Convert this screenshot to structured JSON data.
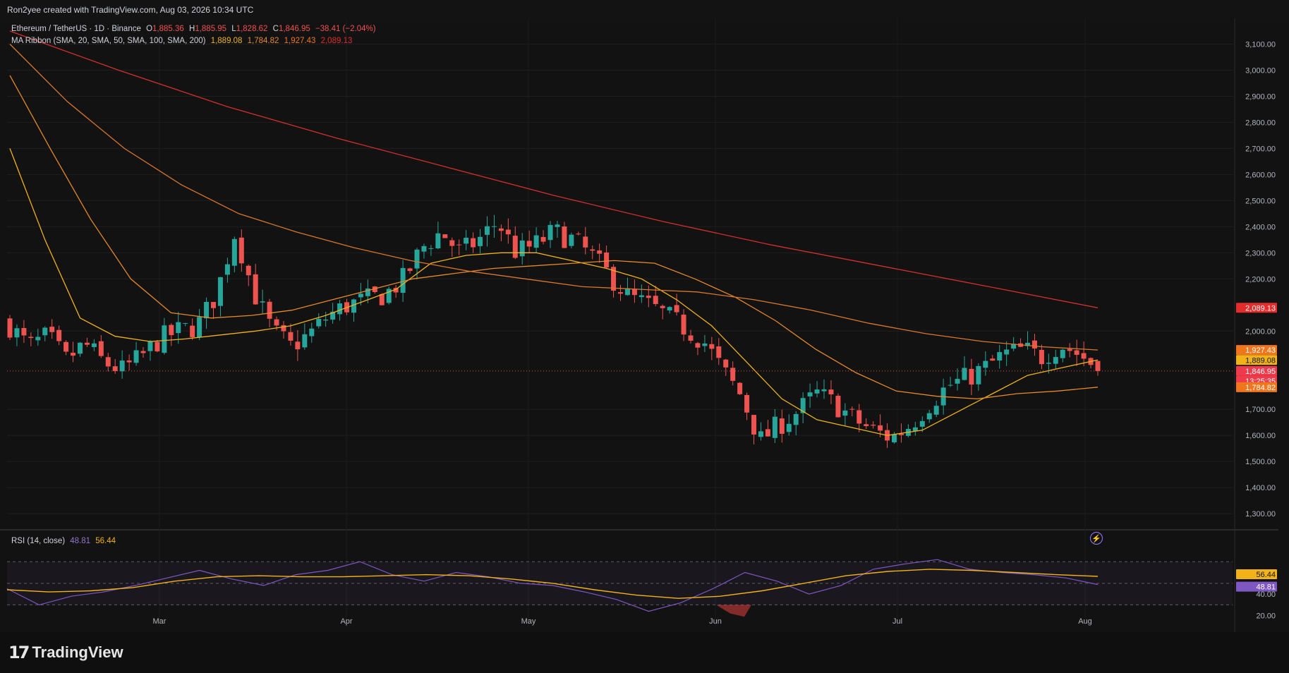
{
  "header": {
    "credit": "Ron2yee created with TradingView.com, Aug 03, 2026 10:34 UTC"
  },
  "legend": {
    "symbol": "Ethereum / TetherUS · 1D · Binance",
    "o_label": "O",
    "o": "1,885.36",
    "h_label": "H",
    "h": "1,885.95",
    "l_label": "L",
    "l": "1,828.62",
    "c_label": "C",
    "c": "1,846.95",
    "change": "−38.41 (−2.04%)",
    "ma_label": "MA Ribbon (SMA, 20, SMA, 50, SMA, 100, SMA, 200)",
    "ma20": "1,889.08",
    "ma50": "1,784.82",
    "ma100": "1,927.43",
    "ma200": "2,089.13",
    "rsi_label": "RSI (14, close)",
    "rsi": "48.81",
    "rsi_ma": "56.44"
  },
  "price_axis": [
    "3,100.00",
    "3,000.00",
    "2,900.00",
    "2,800.00",
    "2,700.00",
    "2,600.00",
    "2,500.00",
    "2,400.00",
    "2,300.00",
    "2,200.00",
    "2,000.00",
    "1,700.00",
    "1,600.00",
    "1,500.00",
    "1,400.00",
    "1,300.00"
  ],
  "price_badges": [
    {
      "label": "2,089.13",
      "color": "#e32c2c"
    },
    {
      "label": "1,927.43",
      "color": "#f0761d"
    },
    {
      "label": "1,889.08",
      "color": "#f2b318"
    },
    {
      "label": "1,846.95",
      "color": "#ef3a4c"
    },
    {
      "label": "13:25:35",
      "color": "#ef3a4c"
    },
    {
      "label": "1,784.82",
      "color": "#f0761d"
    }
  ],
  "rsi_axis": [
    "40.00",
    "20.00"
  ],
  "rsi_badges": [
    {
      "label": "56.44",
      "color": "#f2b318"
    },
    {
      "label": "48.81",
      "color": "#7e57c2"
    }
  ],
  "time_axis": [
    "Mar",
    "Apr",
    "May",
    "Jun",
    "Jul",
    "Aug"
  ],
  "brand": "TradingView",
  "colors": {
    "up": "#26a69a",
    "down": "#ef5350",
    "sma20": "#f2b318",
    "sma50": "#e5892a",
    "sma100": "#d9772c",
    "sma200": "#d32f2f",
    "rsi": "#7e57c2",
    "rsi_ma": "#f2b318"
  },
  "chart_data": [
    {
      "type": "candlestick",
      "title": "Ethereum / TetherUS · 1D · Binance",
      "ylim": [
        1230,
        3150
      ],
      "x_labels": [
        "Mar",
        "Apr",
        "May",
        "Jun",
        "Jul",
        "Aug"
      ],
      "last": {
        "open": 1885.36,
        "high": 1885.95,
        "low": 1828.62,
        "close": 1846.95
      },
      "close_path": [
        2020,
        1940,
        1980,
        1890,
        1950,
        1880,
        1850,
        1900,
        1970,
        2000,
        2020,
        2140,
        2380,
        2150,
        2000,
        1940,
        1990,
        2060,
        2100,
        2120,
        2140,
        2200,
        2320,
        2380,
        2300,
        2350,
        2420,
        2300,
        2330,
        2380,
        2350,
        2290,
        2210,
        2130,
        2100,
        2060,
        2010,
        1960,
        1850,
        1750,
        1580,
        1640,
        1690,
        1760,
        1720,
        1660,
        1620,
        1590,
        1640,
        1720,
        1790,
        1820,
        1860,
        1910,
        1930,
        1900,
        1950,
        1910,
        1860
      ],
      "series": [
        {
          "name": "SMA 20",
          "values": [
            2700,
            2350,
            2050,
            1980,
            1960,
            1970,
            1985,
            2000,
            2020,
            2060,
            2110,
            2160,
            2260,
            2290,
            2300,
            2300,
            2270,
            2240,
            2200,
            2120,
            2020,
            1880,
            1740,
            1660,
            1630,
            1600,
            1620,
            1690,
            1760,
            1830,
            1860,
            1889.08
          ]
        },
        {
          "name": "SMA 50",
          "values": [
            2980,
            2700,
            2430,
            2200,
            2070,
            2050,
            2060,
            2080,
            2120,
            2160,
            2200,
            2220,
            2240,
            2250,
            2260,
            2270,
            2260,
            2200,
            2130,
            2040,
            1930,
            1840,
            1770,
            1750,
            1740,
            1760,
            1770,
            1784.82
          ]
        },
        {
          "name": "SMA 100",
          "values": [
            3100,
            2880,
            2700,
            2560,
            2450,
            2380,
            2320,
            2270,
            2230,
            2200,
            2170,
            2160,
            2150,
            2120,
            2080,
            2030,
            1990,
            1960,
            1940,
            1927.43
          ]
        },
        {
          "name": "SMA 200",
          "values": [
            3150,
            3000,
            2860,
            2740,
            2630,
            2520,
            2420,
            2330,
            2250,
            2170,
            2089.13
          ]
        }
      ]
    },
    {
      "type": "line",
      "title": "RSI (14, close)",
      "ylim": [
        10,
        95
      ],
      "series": [
        {
          "name": "RSI",
          "values": [
            45,
            30,
            38,
            42,
            48,
            55,
            62,
            54,
            48,
            58,
            62,
            70,
            58,
            52,
            60,
            56,
            50,
            48,
            42,
            35,
            24,
            32,
            45,
            60,
            52,
            40,
            48,
            63,
            68,
            72,
            63,
            60,
            58,
            55,
            48.81
          ]
        },
        {
          "name": "RSI MA",
          "values": [
            44,
            42,
            43,
            46,
            52,
            56,
            57,
            56,
            56,
            57,
            58,
            57,
            54,
            50,
            44,
            39,
            36,
            38,
            43,
            50,
            57,
            61,
            63,
            62,
            60,
            58,
            56.44
          ]
        }
      ]
    }
  ]
}
